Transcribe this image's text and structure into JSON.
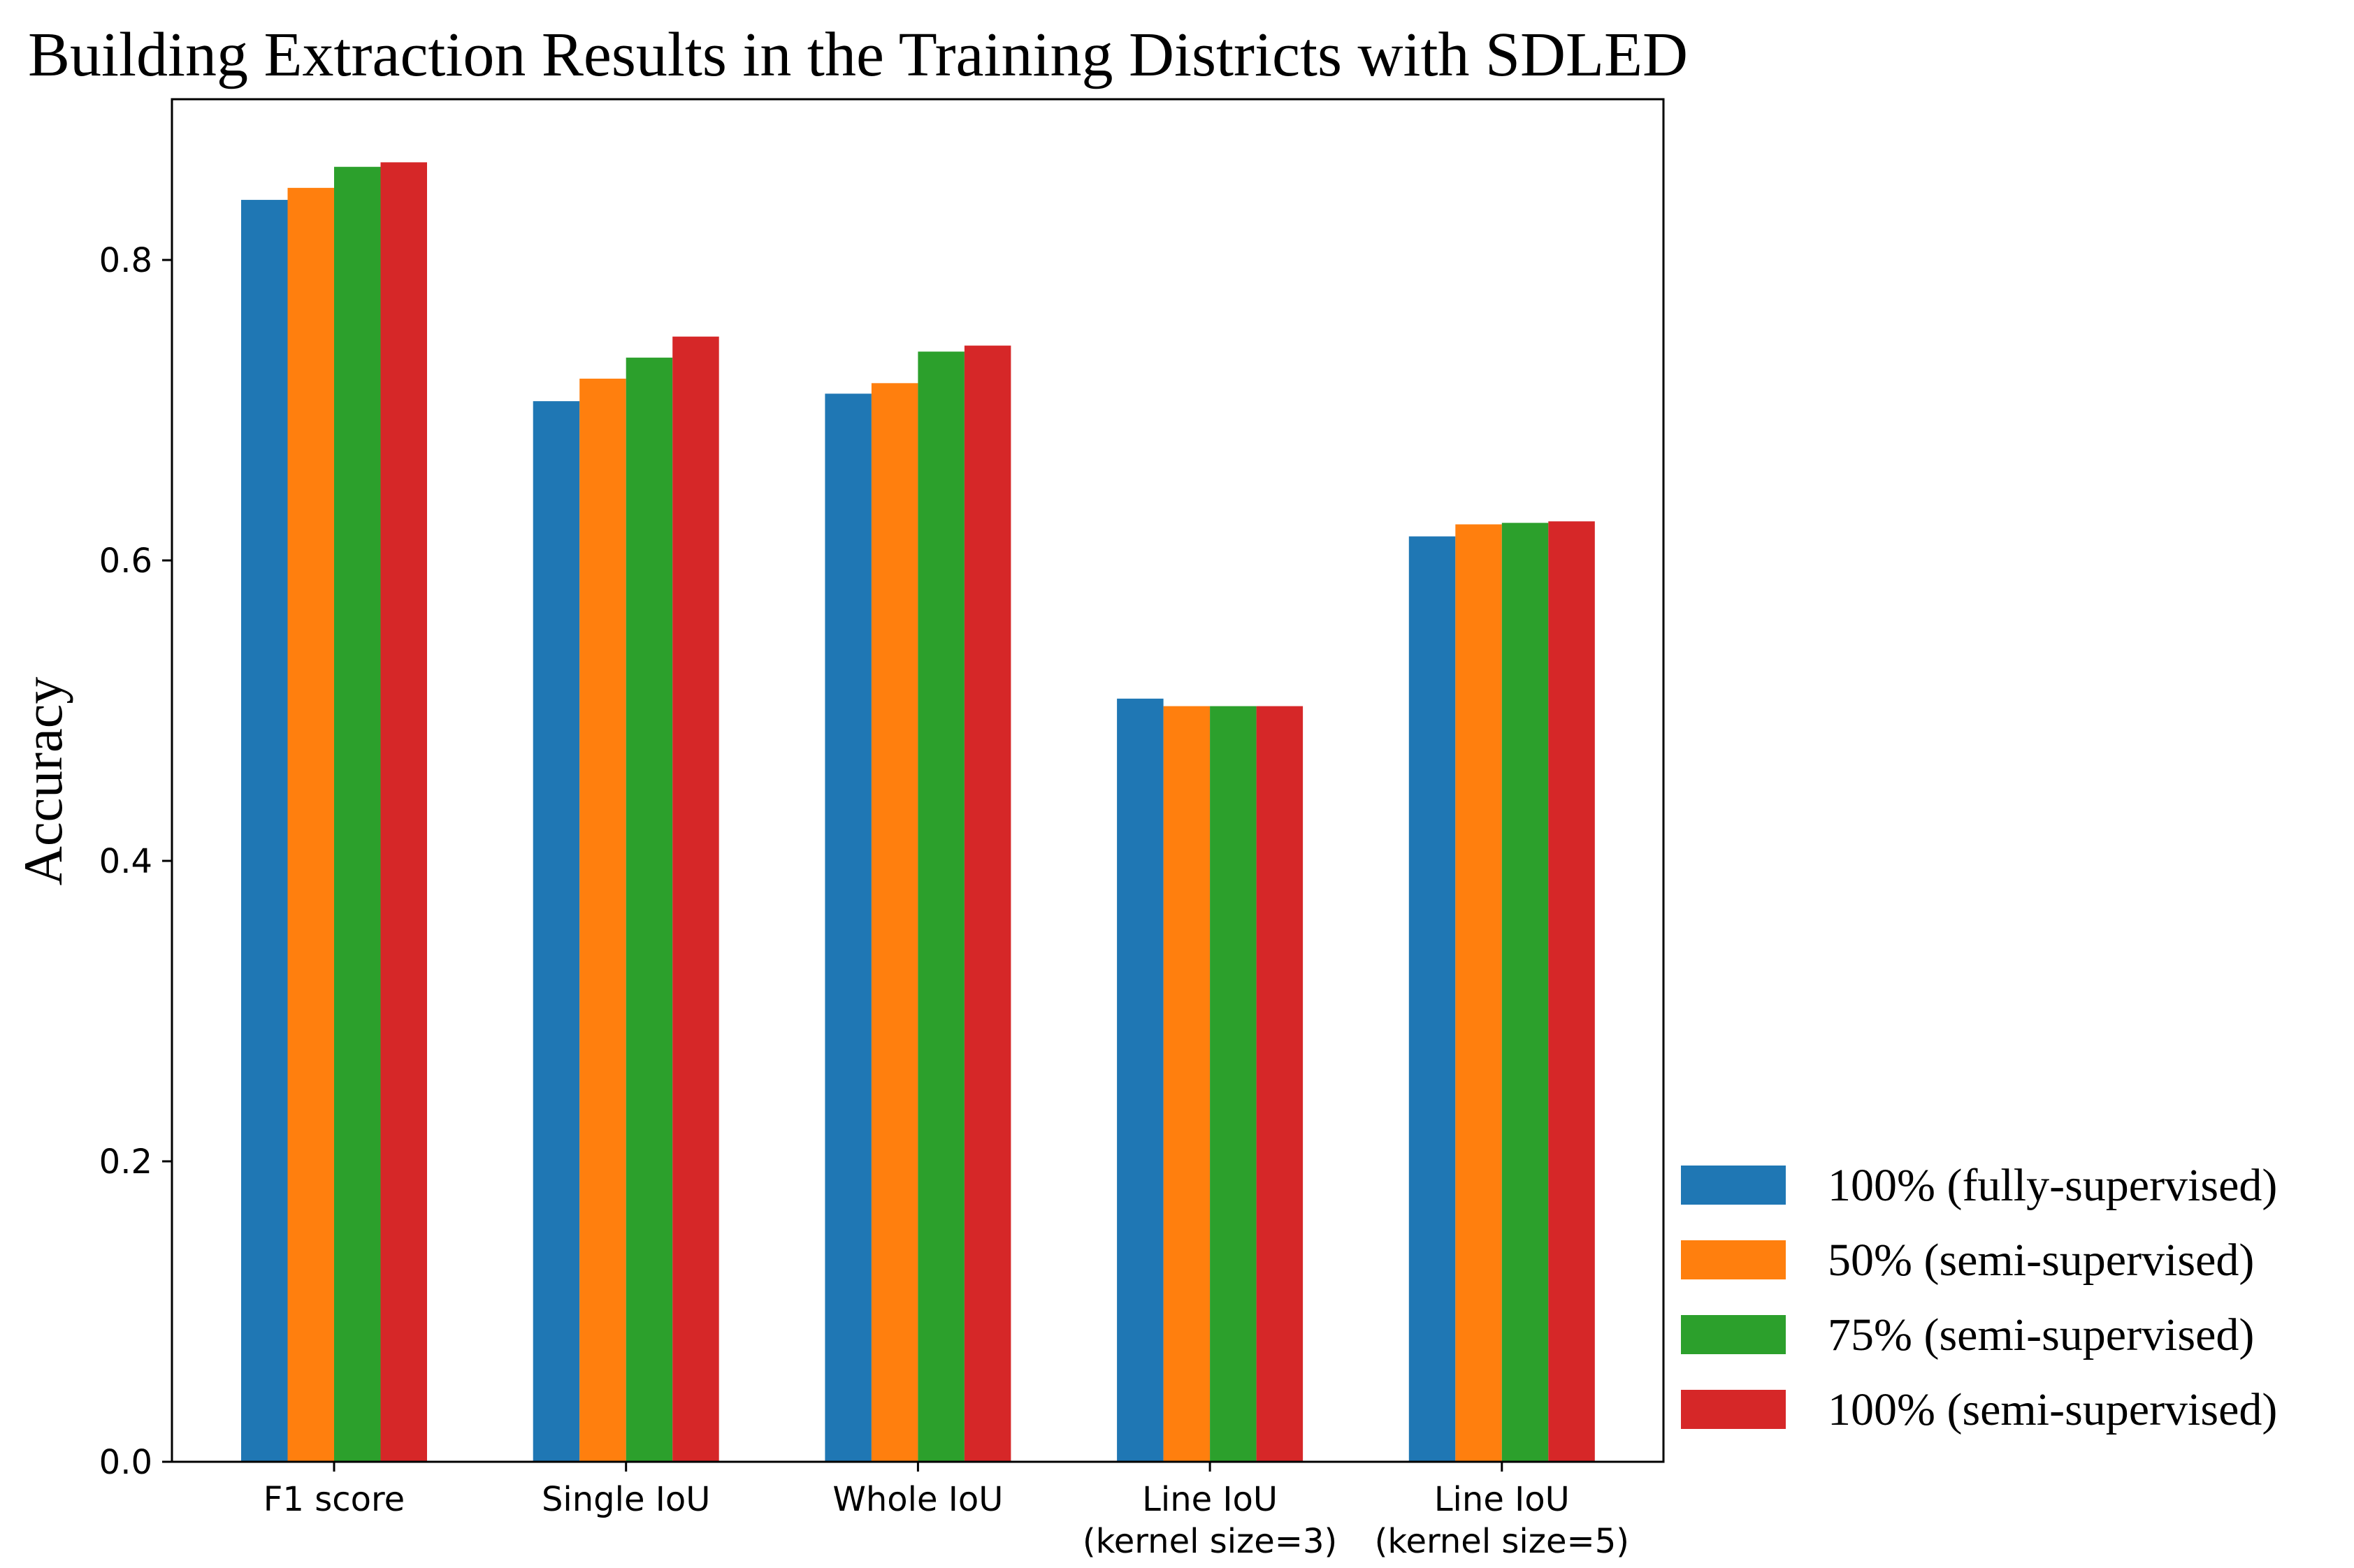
{
  "chart_data": {
    "type": "bar",
    "title": "Building Extraction Results in the Training Districts with SDLED",
    "xlabel": "",
    "ylabel": "Accuracy",
    "ylim": [
      0,
      0.907
    ],
    "yticks": [
      0.0,
      0.2,
      0.4,
      0.6,
      0.8
    ],
    "ytick_labels": [
      "0.0",
      "0.2",
      "0.4",
      "0.6",
      "0.8"
    ],
    "grid": false,
    "legend_position": "right, outside plot area, bottom",
    "categories": [
      [
        "F1 score"
      ],
      [
        "Single IoU"
      ],
      [
        "Whole IoU"
      ],
      [
        "Line IoU",
        "(kernel size=3)"
      ],
      [
        "Line IoU",
        "(kernel size=5)"
      ]
    ],
    "series": [
      {
        "name": "100% (fully-supervised)",
        "color": "#1f77b4",
        "values": [
          0.84,
          0.706,
          0.711,
          0.508,
          0.616
        ]
      },
      {
        "name": "50% (semi-supervised)",
        "color": "#ff7f0e",
        "values": [
          0.848,
          0.721,
          0.718,
          0.503,
          0.624
        ]
      },
      {
        "name": "75% (semi-supervised)",
        "color": "#2ca02c",
        "values": [
          0.862,
          0.735,
          0.739,
          0.503,
          0.625
        ]
      },
      {
        "name": "100% (semi-supervised)",
        "color": "#d62728",
        "values": [
          0.865,
          0.749,
          0.743,
          0.503,
          0.626
        ]
      }
    ]
  }
}
